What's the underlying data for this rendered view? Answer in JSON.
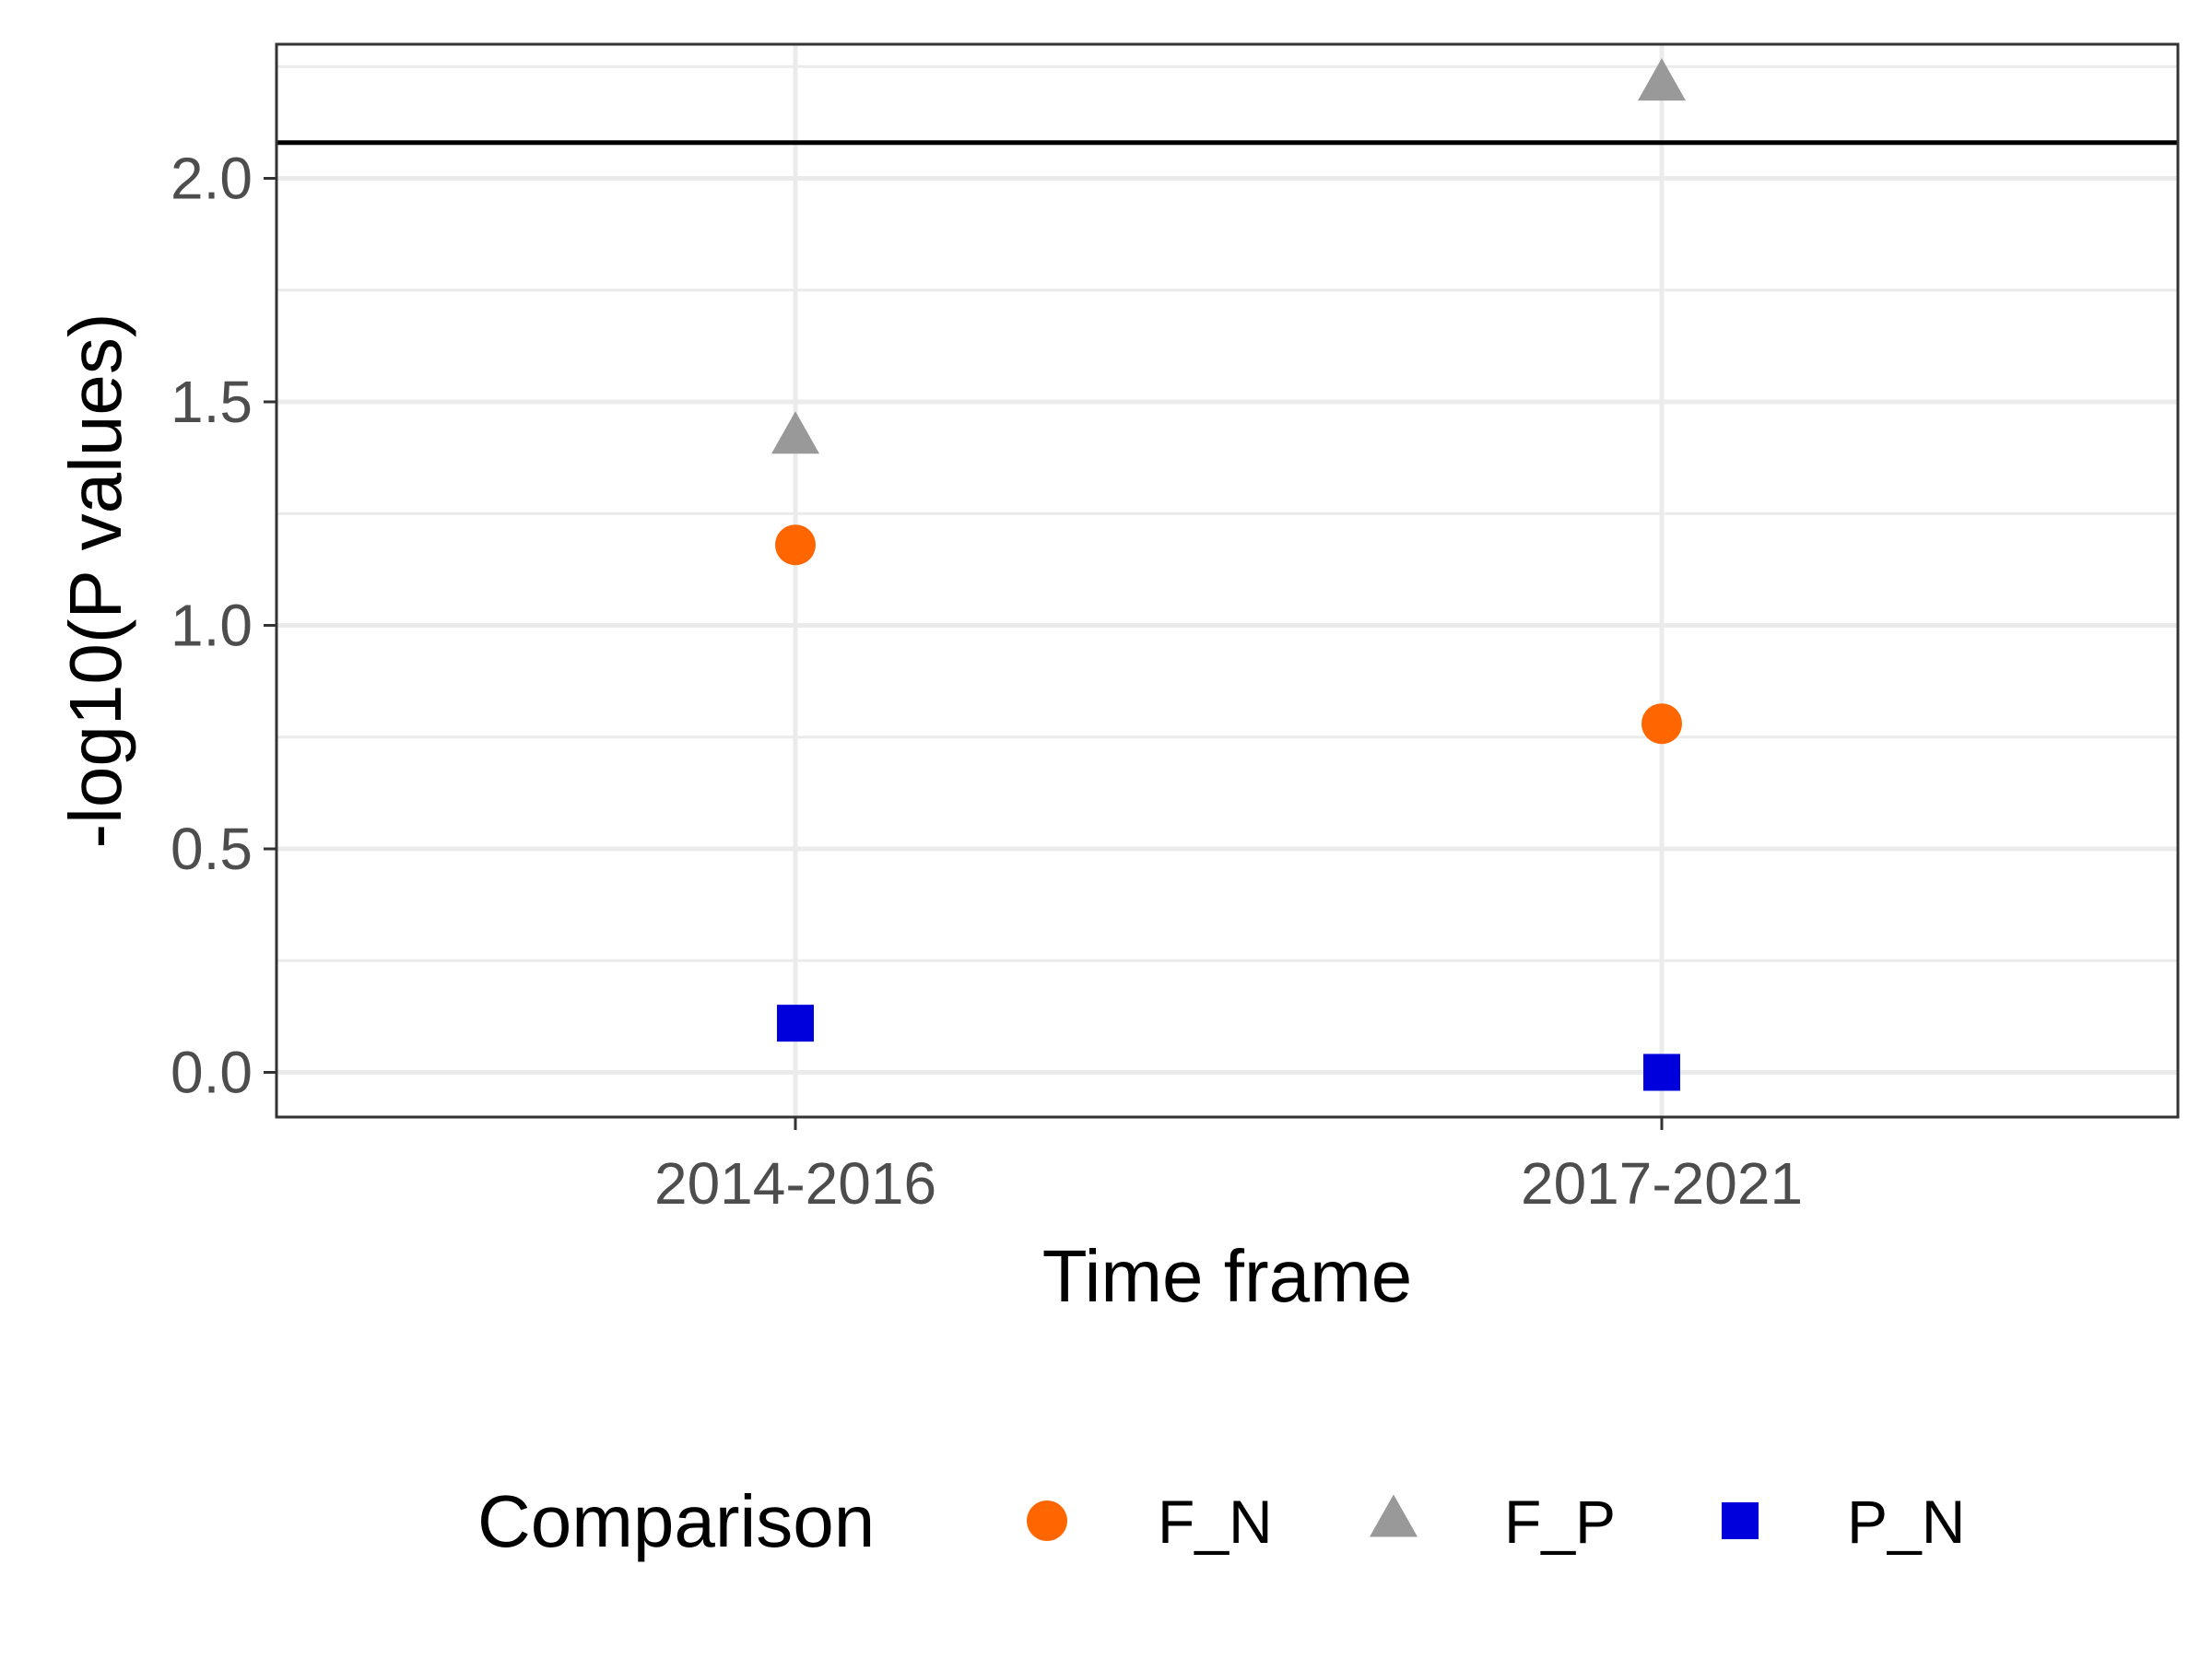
{
  "chart_data": {
    "type": "scatter",
    "title": "",
    "xlabel": "Time frame",
    "ylabel": "-log10(P values)",
    "categories": [
      "2014-2016",
      "2017-2021"
    ],
    "ylim": [
      -0.1,
      2.3
    ],
    "yticks": [
      0.0,
      0.5,
      1.0,
      1.5,
      2.0
    ],
    "ytick_labels": [
      "0.0",
      "0.5",
      "1.0",
      "1.5",
      "2.0"
    ],
    "grid": true,
    "reference_line": {
      "y": 2.08,
      "color": "#000000"
    },
    "legend": {
      "title": "Comparison",
      "position": "bottom"
    },
    "series": [
      {
        "name": "F_N",
        "shape": "circle",
        "color": "#FF6600",
        "values": [
          1.18,
          0.78
        ]
      },
      {
        "name": "F_P",
        "shape": "triangle",
        "color": "#999999",
        "values": [
          1.42,
          2.21
        ]
      },
      {
        "name": "P_N",
        "shape": "square",
        "color": "#0000DD",
        "values": [
          0.11,
          0.0
        ]
      }
    ]
  }
}
